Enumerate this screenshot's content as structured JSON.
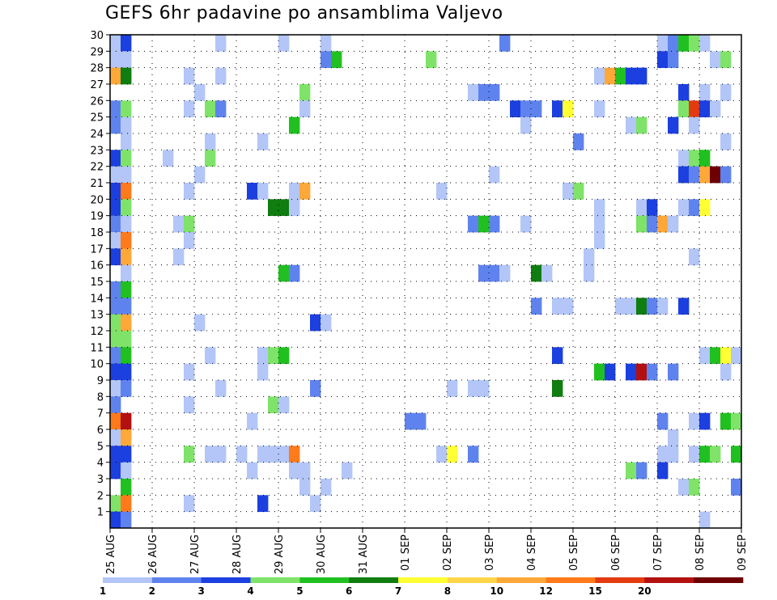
{
  "title": "GEFS 6hr padavine po ansamblima Valjevo",
  "chart_data": {
    "type": "heatmap",
    "title": "GEFS 6hr padavine po ansamblima Valjevo",
    "xlabel": "",
    "ylabel": "",
    "x_tick_labels": [
      "25 AUG",
      "26 AUG",
      "27 AUG",
      "28 AUG",
      "29 AUG",
      "30 AUG",
      "31 AUG",
      "01 SEP",
      "02 SEP",
      "03 SEP",
      "04 SEP",
      "05 SEP",
      "06 SEP",
      "07 SEP",
      "08 SEP",
      "09 SEP"
    ],
    "y_tick_labels": [
      1,
      2,
      3,
      4,
      5,
      6,
      7,
      8,
      9,
      10,
      11,
      12,
      13,
      14,
      15,
      16,
      17,
      18,
      19,
      20,
      21,
      22,
      23,
      24,
      25,
      26,
      27,
      28,
      29,
      30
    ],
    "x_range_steps": [
      0,
      60
    ],
    "steps_per_day": 4,
    "y_range": [
      0,
      30
    ],
    "grid": true,
    "color_levels": [
      1,
      2,
      3,
      4,
      5,
      6,
      7,
      8,
      10,
      12,
      15,
      20
    ],
    "color_scale": [
      "#b3c6f7",
      "#5f83ee",
      "#1c3fe0",
      "#7fe36a",
      "#21c021",
      "#0f7d0f",
      "#ffff33",
      "#ffd54a",
      "#ffa83a",
      "#ff7a1a",
      "#e33a10",
      "#b31010",
      "#6e0000"
    ],
    "legend_labels": [
      "1",
      "2",
      "3",
      "4",
      "5",
      "6",
      "7",
      "8",
      "10",
      "12",
      "15",
      "20"
    ],
    "legend_placement": "bottom",
    "cells": [
      {
        "member": 30,
        "t": 0,
        "c": 0
      },
      {
        "member": 30,
        "t": 1,
        "c": 2
      },
      {
        "member": 30,
        "t": 10,
        "c": 0
      },
      {
        "member": 30,
        "t": 16,
        "c": 0
      },
      {
        "member": 30,
        "t": 20,
        "c": 0
      },
      {
        "member": 30,
        "t": 37,
        "c": 1
      },
      {
        "member": 30,
        "t": 52,
        "c": 0
      },
      {
        "member": 30,
        "t": 53,
        "c": 1
      },
      {
        "member": 30,
        "t": 54,
        "c": 4
      },
      {
        "member": 30,
        "t": 55,
        "c": 3
      },
      {
        "member": 30,
        "t": 56,
        "c": 0
      },
      {
        "member": 29,
        "t": 0,
        "c": 0
      },
      {
        "member": 29,
        "t": 1,
        "c": 0
      },
      {
        "member": 29,
        "t": 20,
        "c": 1
      },
      {
        "member": 29,
        "t": 21,
        "c": 4
      },
      {
        "member": 29,
        "t": 30,
        "c": 3
      },
      {
        "member": 29,
        "t": 52,
        "c": 2
      },
      {
        "member": 29,
        "t": 53,
        "c": 1
      },
      {
        "member": 29,
        "t": 57,
        "c": 0
      },
      {
        "member": 29,
        "t": 58,
        "c": 3
      },
      {
        "member": 28,
        "t": 0,
        "c": 8
      },
      {
        "member": 28,
        "t": 1,
        "c": 5
      },
      {
        "member": 28,
        "t": 7,
        "c": 0
      },
      {
        "member": 28,
        "t": 10,
        "c": 0
      },
      {
        "member": 28,
        "t": 46,
        "c": 0
      },
      {
        "member": 28,
        "t": 47,
        "c": 8
      },
      {
        "member": 28,
        "t": 48,
        "c": 4
      },
      {
        "member": 28,
        "t": 49,
        "c": 2
      },
      {
        "member": 28,
        "t": 50,
        "c": 2
      },
      {
        "member": 27,
        "t": 8,
        "c": 0
      },
      {
        "member": 27,
        "t": 18,
        "c": 3
      },
      {
        "member": 27,
        "t": 34,
        "c": 0
      },
      {
        "member": 27,
        "t": 35,
        "c": 1
      },
      {
        "member": 27,
        "t": 36,
        "c": 1
      },
      {
        "member": 27,
        "t": 54,
        "c": 2
      },
      {
        "member": 27,
        "t": 56,
        "c": 0
      },
      {
        "member": 27,
        "t": 58,
        "c": 0
      },
      {
        "member": 26,
        "t": 0,
        "c": 1
      },
      {
        "member": 26,
        "t": 1,
        "c": 3
      },
      {
        "member": 26,
        "t": 7,
        "c": 0
      },
      {
        "member": 26,
        "t": 9,
        "c": 3
      },
      {
        "member": 26,
        "t": 10,
        "c": 1
      },
      {
        "member": 26,
        "t": 18,
        "c": 0
      },
      {
        "member": 26,
        "t": 38,
        "c": 2
      },
      {
        "member": 26,
        "t": 39,
        "c": 1
      },
      {
        "member": 26,
        "t": 40,
        "c": 1
      },
      {
        "member": 26,
        "t": 42,
        "c": 2
      },
      {
        "member": 26,
        "t": 43,
        "c": 6
      },
      {
        "member": 26,
        "t": 46,
        "c": 0
      },
      {
        "member": 26,
        "t": 54,
        "c": 3
      },
      {
        "member": 26,
        "t": 55,
        "c": 10
      },
      {
        "member": 26,
        "t": 56,
        "c": 2
      },
      {
        "member": 26,
        "t": 57,
        "c": 0
      },
      {
        "member": 25,
        "t": 0,
        "c": 1
      },
      {
        "member": 25,
        "t": 1,
        "c": 0
      },
      {
        "member": 25,
        "t": 17,
        "c": 4
      },
      {
        "member": 25,
        "t": 39,
        "c": 0
      },
      {
        "member": 25,
        "t": 49,
        "c": 0
      },
      {
        "member": 25,
        "t": 50,
        "c": 3
      },
      {
        "member": 25,
        "t": 53,
        "c": 2
      },
      {
        "member": 25,
        "t": 55,
        "c": 0
      },
      {
        "member": 24,
        "t": 1,
        "c": 0
      },
      {
        "member": 24,
        "t": 9,
        "c": 0
      },
      {
        "member": 24,
        "t": 14,
        "c": 0
      },
      {
        "member": 24,
        "t": 44,
        "c": 1
      },
      {
        "member": 24,
        "t": 58,
        "c": 0
      },
      {
        "member": 23,
        "t": 0,
        "c": 2
      },
      {
        "member": 23,
        "t": 1,
        "c": 3
      },
      {
        "member": 23,
        "t": 5,
        "c": 0
      },
      {
        "member": 23,
        "t": 9,
        "c": 3
      },
      {
        "member": 23,
        "t": 54,
        "c": 0
      },
      {
        "member": 23,
        "t": 55,
        "c": 3
      },
      {
        "member": 23,
        "t": 56,
        "c": 4
      },
      {
        "member": 22,
        "t": 0,
        "c": 0
      },
      {
        "member": 22,
        "t": 1,
        "c": 0
      },
      {
        "member": 22,
        "t": 8,
        "c": 0
      },
      {
        "member": 22,
        "t": 36,
        "c": 0
      },
      {
        "member": 22,
        "t": 54,
        "c": 2
      },
      {
        "member": 22,
        "t": 55,
        "c": 1
      },
      {
        "member": 22,
        "t": 56,
        "c": 8
      },
      {
        "member": 22,
        "t": 57,
        "c": 12
      },
      {
        "member": 22,
        "t": 58,
        "c": 1
      },
      {
        "member": 21,
        "t": 0,
        "c": 2
      },
      {
        "member": 21,
        "t": 1,
        "c": 9
      },
      {
        "member": 21,
        "t": 7,
        "c": 0
      },
      {
        "member": 21,
        "t": 13,
        "c": 2
      },
      {
        "member": 21,
        "t": 14,
        "c": 0
      },
      {
        "member": 21,
        "t": 17,
        "c": 0
      },
      {
        "member": 21,
        "t": 18,
        "c": 8
      },
      {
        "member": 21,
        "t": 31,
        "c": 0
      },
      {
        "member": 21,
        "t": 43,
        "c": 0
      },
      {
        "member": 21,
        "t": 44,
        "c": 3
      },
      {
        "member": 20,
        "t": 0,
        "c": 2
      },
      {
        "member": 20,
        "t": 1,
        "c": 3
      },
      {
        "member": 20,
        "t": 15,
        "c": 5
      },
      {
        "member": 20,
        "t": 16,
        "c": 5
      },
      {
        "member": 20,
        "t": 17,
        "c": 0
      },
      {
        "member": 20,
        "t": 46,
        "c": 0
      },
      {
        "member": 20,
        "t": 50,
        "c": 0
      },
      {
        "member": 20,
        "t": 51,
        "c": 2
      },
      {
        "member": 20,
        "t": 54,
        "c": 0
      },
      {
        "member": 20,
        "t": 55,
        "c": 1
      },
      {
        "member": 20,
        "t": 56,
        "c": 6
      },
      {
        "member": 19,
        "t": 0,
        "c": 1
      },
      {
        "member": 19,
        "t": 1,
        "c": 0
      },
      {
        "member": 19,
        "t": 6,
        "c": 0
      },
      {
        "member": 19,
        "t": 7,
        "c": 3
      },
      {
        "member": 19,
        "t": 34,
        "c": 1
      },
      {
        "member": 19,
        "t": 35,
        "c": 4
      },
      {
        "member": 19,
        "t": 36,
        "c": 1
      },
      {
        "member": 19,
        "t": 39,
        "c": 0
      },
      {
        "member": 19,
        "t": 46,
        "c": 0
      },
      {
        "member": 19,
        "t": 50,
        "c": 3
      },
      {
        "member": 19,
        "t": 51,
        "c": 1
      },
      {
        "member": 19,
        "t": 52,
        "c": 8
      },
      {
        "member": 19,
        "t": 53,
        "c": 0
      },
      {
        "member": 18,
        "t": 0,
        "c": 0
      },
      {
        "member": 18,
        "t": 1,
        "c": 9
      },
      {
        "member": 18,
        "t": 7,
        "c": 0
      },
      {
        "member": 18,
        "t": 46,
        "c": 0
      },
      {
        "member": 17,
        "t": 0,
        "c": 2
      },
      {
        "member": 17,
        "t": 1,
        "c": 8
      },
      {
        "member": 17,
        "t": 6,
        "c": 0
      },
      {
        "member": 17,
        "t": 45,
        "c": 0
      },
      {
        "member": 17,
        "t": 55,
        "c": 0
      },
      {
        "member": 16,
        "t": 1,
        "c": 0
      },
      {
        "member": 16,
        "t": 16,
        "c": 4
      },
      {
        "member": 16,
        "t": 17,
        "c": 1
      },
      {
        "member": 16,
        "t": 35,
        "c": 1
      },
      {
        "member": 16,
        "t": 36,
        "c": 1
      },
      {
        "member": 16,
        "t": 37,
        "c": 0
      },
      {
        "member": 16,
        "t": 40,
        "c": 5
      },
      {
        "member": 16,
        "t": 41,
        "c": 0
      },
      {
        "member": 16,
        "t": 45,
        "c": 0
      },
      {
        "member": 15,
        "t": 0,
        "c": 1
      },
      {
        "member": 15,
        "t": 1,
        "c": 4
      },
      {
        "member": 14,
        "t": 0,
        "c": 1
      },
      {
        "member": 14,
        "t": 1,
        "c": 1
      },
      {
        "member": 14,
        "t": 40,
        "c": 1
      },
      {
        "member": 14,
        "t": 42,
        "c": 0
      },
      {
        "member": 14,
        "t": 43,
        "c": 0
      },
      {
        "member": 14,
        "t": 48,
        "c": 0
      },
      {
        "member": 14,
        "t": 49,
        "c": 0
      },
      {
        "member": 14,
        "t": 50,
        "c": 5
      },
      {
        "member": 14,
        "t": 51,
        "c": 1
      },
      {
        "member": 14,
        "t": 52,
        "c": 0
      },
      {
        "member": 14,
        "t": 54,
        "c": 2
      },
      {
        "member": 13,
        "t": 0,
        "c": 3
      },
      {
        "member": 13,
        "t": 1,
        "c": 8
      },
      {
        "member": 13,
        "t": 8,
        "c": 0
      },
      {
        "member": 13,
        "t": 19,
        "c": 2
      },
      {
        "member": 13,
        "t": 20,
        "c": 0
      },
      {
        "member": 12,
        "t": 0,
        "c": 3
      },
      {
        "member": 12,
        "t": 1,
        "c": 3
      },
      {
        "member": 11,
        "t": 0,
        "c": 1
      },
      {
        "member": 11,
        "t": 1,
        "c": 4
      },
      {
        "member": 11,
        "t": 9,
        "c": 0
      },
      {
        "member": 11,
        "t": 14,
        "c": 0
      },
      {
        "member": 11,
        "t": 15,
        "c": 3
      },
      {
        "member": 11,
        "t": 16,
        "c": 4
      },
      {
        "member": 11,
        "t": 42,
        "c": 2
      },
      {
        "member": 11,
        "t": 56,
        "c": 0
      },
      {
        "member": 11,
        "t": 57,
        "c": 4
      },
      {
        "member": 11,
        "t": 58,
        "c": 6
      },
      {
        "member": 11,
        "t": 59,
        "c": 0
      },
      {
        "member": 10,
        "t": 0,
        "c": 2
      },
      {
        "member": 10,
        "t": 1,
        "c": 2
      },
      {
        "member": 10,
        "t": 7,
        "c": 0
      },
      {
        "member": 10,
        "t": 14,
        "c": 0
      },
      {
        "member": 10,
        "t": 46,
        "c": 4
      },
      {
        "member": 10,
        "t": 47,
        "c": 2
      },
      {
        "member": 10,
        "t": 49,
        "c": 2
      },
      {
        "member": 10,
        "t": 50,
        "c": 11
      },
      {
        "member": 10,
        "t": 51,
        "c": 1
      },
      {
        "member": 10,
        "t": 53,
        "c": 1
      },
      {
        "member": 10,
        "t": 58,
        "c": 0
      },
      {
        "member": 9,
        "t": 0,
        "c": 0
      },
      {
        "member": 9,
        "t": 1,
        "c": 1
      },
      {
        "member": 9,
        "t": 10,
        "c": 0
      },
      {
        "member": 9,
        "t": 19,
        "c": 1
      },
      {
        "member": 9,
        "t": 32,
        "c": 0
      },
      {
        "member": 9,
        "t": 34,
        "c": 0
      },
      {
        "member": 9,
        "t": 35,
        "c": 0
      },
      {
        "member": 9,
        "t": 42,
        "c": 5
      },
      {
        "member": 8,
        "t": 0,
        "c": 1
      },
      {
        "member": 8,
        "t": 15,
        "c": 3
      },
      {
        "member": 8,
        "t": 16,
        "c": 0
      },
      {
        "member": 8,
        "t": 7,
        "c": 0
      },
      {
        "member": 7,
        "t": 0,
        "c": 9
      },
      {
        "member": 7,
        "t": 1,
        "c": 11
      },
      {
        "member": 7,
        "t": 13,
        "c": 0
      },
      {
        "member": 7,
        "t": 28,
        "c": 1
      },
      {
        "member": 7,
        "t": 29,
        "c": 1
      },
      {
        "member": 7,
        "t": 52,
        "c": 1
      },
      {
        "member": 7,
        "t": 55,
        "c": 0
      },
      {
        "member": 7,
        "t": 56,
        "c": 2
      },
      {
        "member": 7,
        "t": 58,
        "c": 4
      },
      {
        "member": 7,
        "t": 59,
        "c": 3
      },
      {
        "member": 6,
        "t": 0,
        "c": 0
      },
      {
        "member": 6,
        "t": 1,
        "c": 8
      },
      {
        "member": 6,
        "t": 53,
        "c": 0
      },
      {
        "member": 5,
        "t": 0,
        "c": 2
      },
      {
        "member": 5,
        "t": 1,
        "c": 2
      },
      {
        "member": 5,
        "t": 7,
        "c": 3
      },
      {
        "member": 5,
        "t": 9,
        "c": 0
      },
      {
        "member": 5,
        "t": 10,
        "c": 0
      },
      {
        "member": 5,
        "t": 12,
        "c": 0
      },
      {
        "member": 5,
        "t": 14,
        "c": 0
      },
      {
        "member": 5,
        "t": 15,
        "c": 0
      },
      {
        "member": 5,
        "t": 16,
        "c": 0
      },
      {
        "member": 5,
        "t": 17,
        "c": 9
      },
      {
        "member": 5,
        "t": 31,
        "c": 0
      },
      {
        "member": 5,
        "t": 32,
        "c": 6
      },
      {
        "member": 5,
        "t": 34,
        "c": 1
      },
      {
        "member": 5,
        "t": 52,
        "c": 0
      },
      {
        "member": 5,
        "t": 53,
        "c": 0
      },
      {
        "member": 5,
        "t": 55,
        "c": 0
      },
      {
        "member": 5,
        "t": 56,
        "c": 4
      },
      {
        "member": 5,
        "t": 57,
        "c": 3
      },
      {
        "member": 5,
        "t": 59,
        "c": 4
      },
      {
        "member": 4,
        "t": 0,
        "c": 2
      },
      {
        "member": 4,
        "t": 1,
        "c": 0
      },
      {
        "member": 4,
        "t": 13,
        "c": 0
      },
      {
        "member": 4,
        "t": 17,
        "c": 0
      },
      {
        "member": 4,
        "t": 18,
        "c": 0
      },
      {
        "member": 4,
        "t": 22,
        "c": 0
      },
      {
        "member": 4,
        "t": 49,
        "c": 3
      },
      {
        "member": 4,
        "t": 50,
        "c": 1
      },
      {
        "member": 4,
        "t": 52,
        "c": 2
      },
      {
        "member": 3,
        "t": 1,
        "c": 4
      },
      {
        "member": 3,
        "t": 18,
        "c": 0
      },
      {
        "member": 3,
        "t": 20,
        "c": 0
      },
      {
        "member": 3,
        "t": 54,
        "c": 0
      },
      {
        "member": 3,
        "t": 55,
        "c": 3
      },
      {
        "member": 3,
        "t": 59,
        "c": 1
      },
      {
        "member": 2,
        "t": 0,
        "c": 3
      },
      {
        "member": 2,
        "t": 1,
        "c": 9
      },
      {
        "member": 2,
        "t": 7,
        "c": 0
      },
      {
        "member": 2,
        "t": 14,
        "c": 2
      },
      {
        "member": 2,
        "t": 19,
        "c": 0
      },
      {
        "member": 1,
        "t": 0,
        "c": 2
      },
      {
        "member": 1,
        "t": 1,
        "c": 1
      },
      {
        "member": 1,
        "t": 56,
        "c": 0
      }
    ]
  }
}
